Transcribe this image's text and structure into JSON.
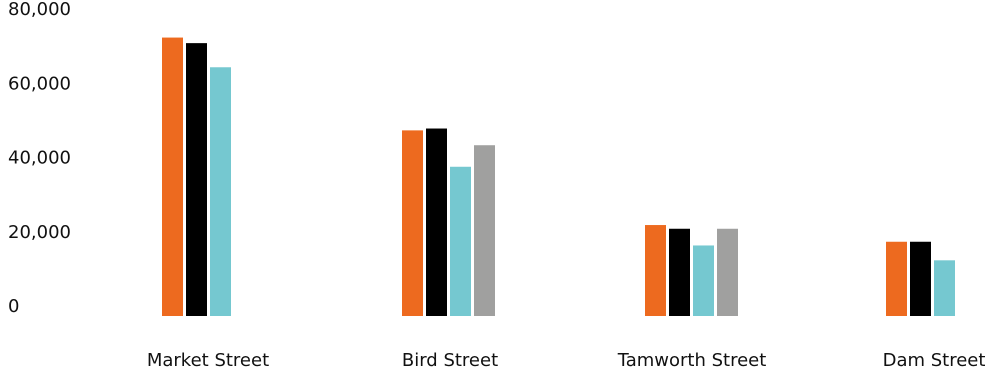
{
  "chart_data": {
    "type": "bar",
    "categories": [
      "Market Street",
      "Bird Street",
      "Tamworth Street",
      "Dam Street"
    ],
    "series": [
      {
        "color": "#ED6A1F",
        "values": [
          75000,
          50000,
          24500,
          20000
        ]
      },
      {
        "color": "#000000",
        "values": [
          73500,
          50500,
          23500,
          20000
        ]
      },
      {
        "color": "#75C8D0",
        "values": [
          67000,
          40200,
          19000,
          15000
        ]
      },
      {
        "color": "#A0A09F",
        "values": [
          null,
          46000,
          23500,
          null
        ]
      }
    ],
    "yticks": [
      "0",
      "20,000",
      "40,000",
      "60,000",
      "80,000"
    ],
    "ylim": [
      0,
      80000
    ],
    "grid": false,
    "legend": "none",
    "title": "",
    "xlabel": "",
    "ylabel": ""
  }
}
